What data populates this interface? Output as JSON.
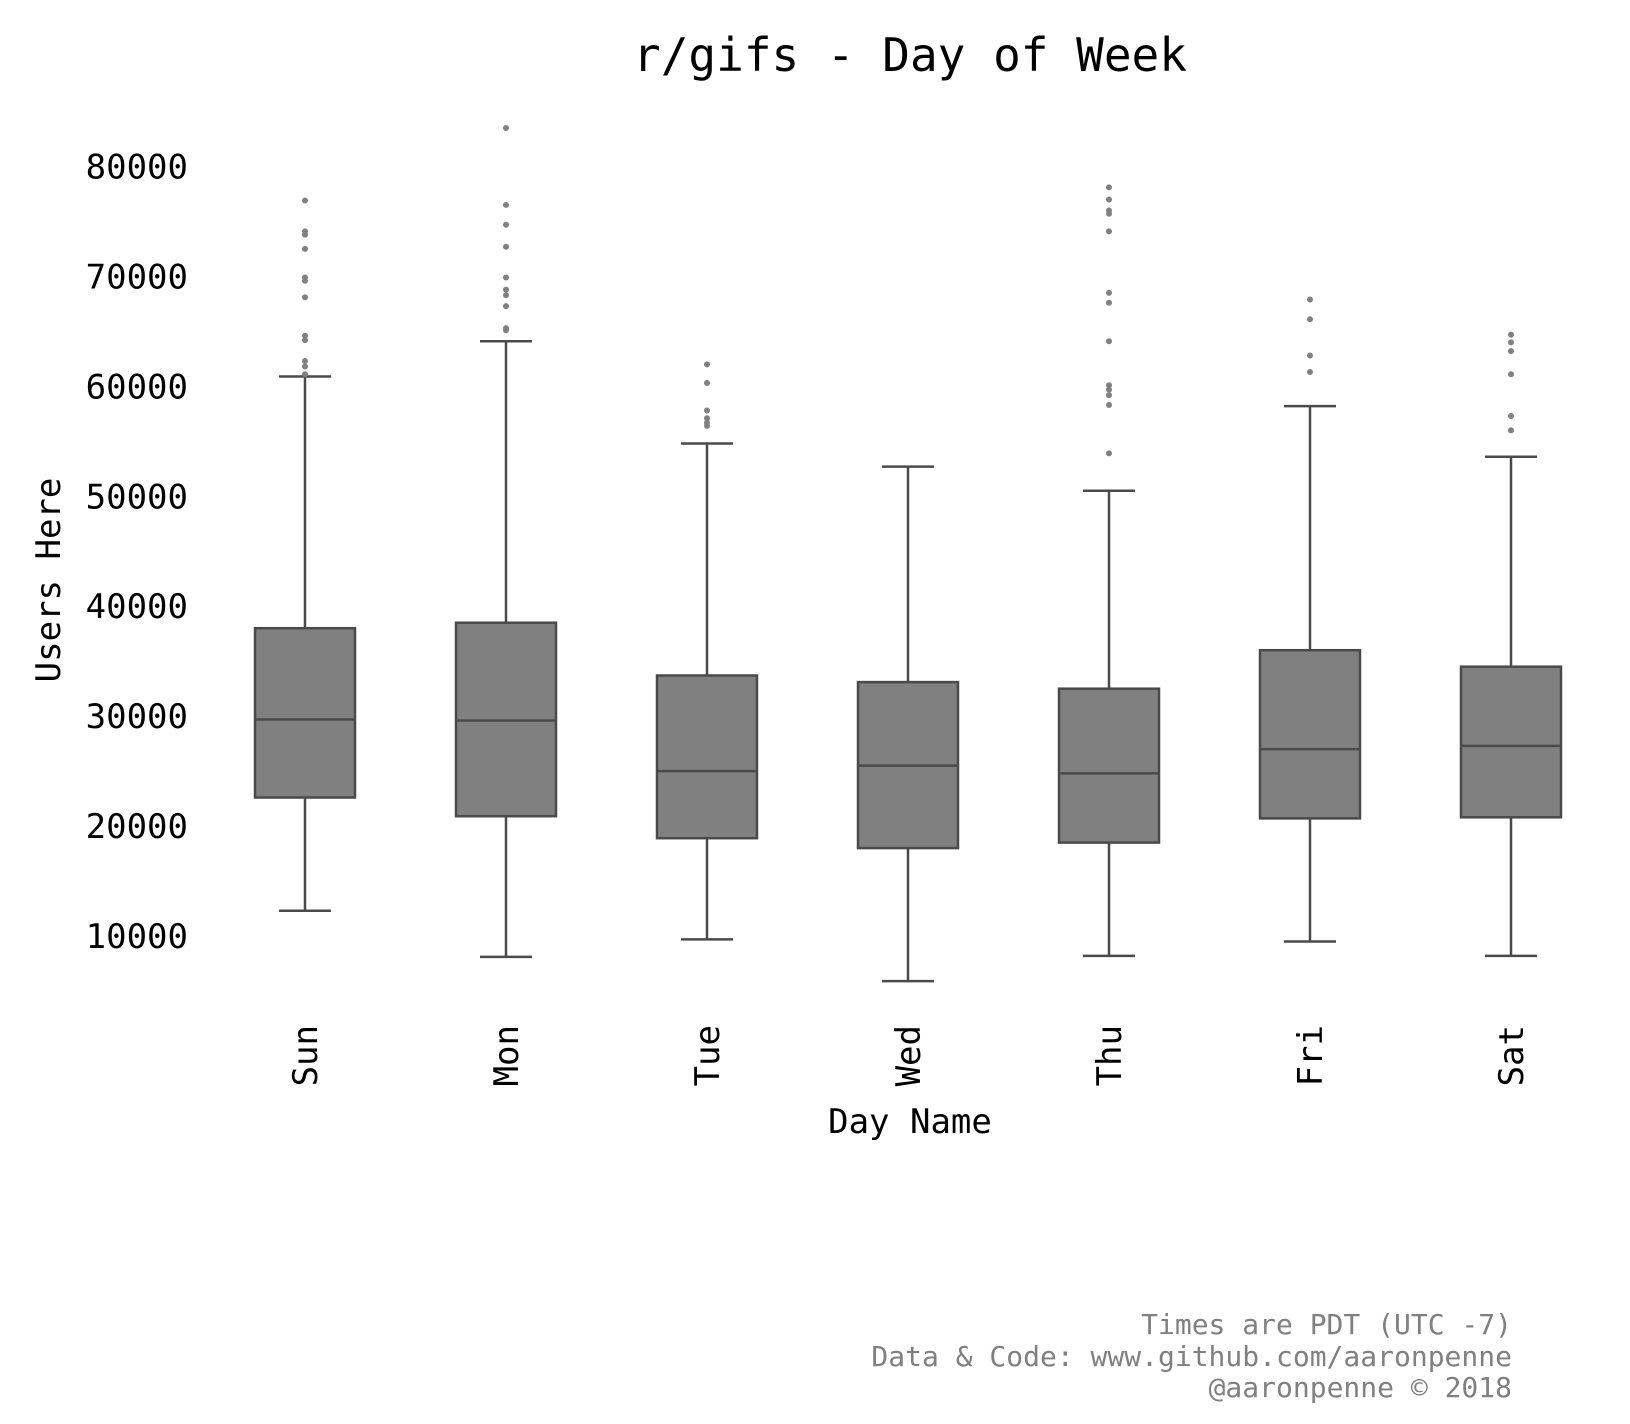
{
  "chart_data": {
    "type": "box",
    "title": "r/gifs - Day of Week",
    "xlabel": "Day Name",
    "ylabel": "Users Here",
    "categories": [
      "Sun",
      "Mon",
      "Tue",
      "Wed",
      "Thu",
      "Fri",
      "Sat"
    ],
    "yticks": [
      "10000",
      "20000",
      "30000",
      "40000",
      "50000",
      "60000",
      "70000",
      "80000"
    ],
    "ytick_values": [
      10000,
      20000,
      30000,
      40000,
      50000,
      60000,
      70000,
      80000
    ],
    "ylim": [
      3000,
      86500
    ],
    "grid": false,
    "legend": "none",
    "boxes": [
      {
        "category": "Sun",
        "whisker_low": 12300,
        "q1": 22600,
        "median": 29700,
        "q3": 38000,
        "whisker_high": 60900,
        "outliers": [
          76900,
          74100,
          73800,
          72500,
          69900,
          69600,
          68100,
          64600,
          64200,
          62300,
          61800,
          61100
        ]
      },
      {
        "category": "Mon",
        "whisker_low": 8100,
        "q1": 20900,
        "median": 29600,
        "q3": 38500,
        "whisker_high": 64100,
        "outliers": [
          83500,
          76500,
          74700,
          72700,
          69900,
          68800,
          68300,
          67300,
          65300,
          65100
        ]
      },
      {
        "category": "Tue",
        "whisker_low": 9700,
        "q1": 18900,
        "median": 25000,
        "q3": 33700,
        "whisker_high": 54800,
        "outliers": [
          62000,
          60300,
          57800,
          57100,
          56700,
          56400
        ]
      },
      {
        "category": "Wed",
        "whisker_low": 5900,
        "q1": 18000,
        "median": 25500,
        "q3": 33100,
        "whisker_high": 52700,
        "outliers": []
      },
      {
        "category": "Thu",
        "whisker_low": 8200,
        "q1": 18500,
        "median": 24800,
        "q3": 32500,
        "whisker_high": 50500,
        "outliers": [
          78100,
          77000,
          76000,
          75700,
          74100,
          68500,
          67600,
          64100,
          60100,
          59700,
          59200,
          58300,
          53900
        ]
      },
      {
        "category": "Fri",
        "whisker_low": 9500,
        "q1": 20700,
        "median": 27000,
        "q3": 36000,
        "whisker_high": 58200,
        "outliers": [
          67900,
          66100,
          62800,
          61300
        ]
      },
      {
        "category": "Sat",
        "whisker_low": 8200,
        "q1": 20800,
        "median": 27300,
        "q3": 34500,
        "whisker_high": 53600,
        "outliers": [
          64700,
          64000,
          63200,
          61100,
          57300,
          56000
        ]
      }
    ],
    "colors": {
      "box_fill": "#808080",
      "box_edge": "#4a4a4a",
      "outlier": "#808080",
      "text": "#000000",
      "footer": "#808080"
    }
  },
  "footer": {
    "line1": "Times are PDT (UTC -7)",
    "line2": "Data & Code: www.github.com/aaronpenne",
    "line3": "@aaronpenne © 2018"
  }
}
